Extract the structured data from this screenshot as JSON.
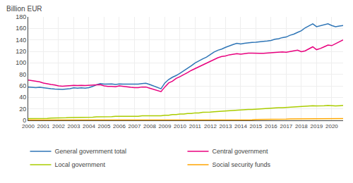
{
  "chart_data": {
    "type": "line",
    "ylabel": "Billion EUR",
    "categories": [
      "2000",
      null,
      null,
      null,
      "2001",
      null,
      null,
      null,
      "2002",
      null,
      null,
      null,
      "2003",
      null,
      null,
      null,
      "2004",
      null,
      null,
      null,
      "2005",
      null,
      null,
      null,
      "2006",
      null,
      null,
      null,
      "2007",
      null,
      null,
      null,
      "2008",
      null,
      null,
      null,
      "2009",
      null,
      null,
      null,
      "2010",
      null,
      null,
      null,
      "2011",
      null,
      null,
      null,
      "2012",
      null,
      null,
      null,
      "2013",
      null,
      null,
      null,
      "2014",
      null,
      null,
      null,
      "2015",
      null,
      null,
      null,
      "2016",
      null,
      null,
      null,
      "2017",
      null,
      null,
      null,
      "2018",
      null,
      null,
      null,
      "2019",
      null,
      null,
      null,
      "2020",
      null,
      null,
      null
    ],
    "series": [
      {
        "name": "General government total",
        "color": "#2E75B6",
        "values": [
          58.0,
          57.5,
          57.0,
          57.5,
          56.5,
          55.5,
          55.0,
          54.5,
          54.0,
          54.0,
          54.5,
          55.0,
          56.5,
          56.0,
          56.5,
          56.0,
          57.0,
          59.0,
          62.0,
          64.0,
          63.0,
          63.0,
          63.5,
          62.5,
          63.5,
          63.0,
          63.0,
          63.0,
          63.0,
          63.0,
          64.0,
          64.5,
          62.5,
          60.0,
          57.5,
          55.0,
          65.0,
          71.0,
          75.0,
          78.0,
          82.0,
          86.0,
          90.0,
          95.0,
          100.0,
          104.0,
          107.0,
          110.0,
          115.0,
          119.0,
          122.0,
          124.0,
          127.0,
          130.0,
          132.0,
          134.0,
          133.0,
          134.0,
          135.0,
          135.5,
          136.0,
          137.0,
          137.5,
          138.0,
          139.0,
          141.0,
          142.0,
          144.0,
          145.0,
          148.0,
          150.0,
          153.0,
          156.0,
          161.0,
          165.0,
          168.0,
          163.0,
          164.5,
          166.0,
          168.0,
          165.0,
          163.0,
          164.0,
          165.0
        ]
      },
      {
        "name": "Central government",
        "color": "#E8007E",
        "values": [
          70.0,
          69.0,
          68.0,
          67.0,
          65.0,
          63.5,
          62.5,
          61.5,
          60.0,
          59.5,
          60.0,
          60.5,
          61.0,
          60.5,
          61.0,
          60.5,
          61.0,
          61.0,
          61.5,
          62.0,
          60.0,
          59.0,
          59.0,
          58.5,
          60.0,
          59.0,
          58.5,
          57.5,
          57.0,
          57.0,
          58.0,
          58.0,
          56.0,
          54.0,
          52.0,
          50.0,
          58.0,
          65.0,
          68.0,
          73.0,
          76.0,
          79.0,
          83.0,
          87.0,
          90.0,
          94.0,
          97.0,
          100.0,
          103.0,
          106.0,
          109.0,
          111.0,
          112.0,
          114.0,
          115.0,
          116.0,
          115.0,
          116.0,
          117.0,
          117.0,
          116.5,
          116.5,
          116.5,
          117.0,
          117.5,
          117.5,
          118.0,
          119.0,
          118.5,
          120.0,
          121.0,
          122.0,
          119.5,
          121.0,
          124.0,
          128.0,
          123.0,
          125.0,
          128.0,
          131.0,
          130.0,
          133.0,
          136.0,
          140.0
        ]
      },
      {
        "name": "Local government",
        "color": "#AACC00",
        "values": [
          3.0,
          3.0,
          3.5,
          3.5,
          3.5,
          3.5,
          4.0,
          4.0,
          4.0,
          4.0,
          4.5,
          5.0,
          5.0,
          5.0,
          5.0,
          5.0,
          5.0,
          5.5,
          6.0,
          6.0,
          6.0,
          6.0,
          6.5,
          7.0,
          7.0,
          7.0,
          7.0,
          7.0,
          7.0,
          7.0,
          8.0,
          8.0,
          8.0,
          8.0,
          8.0,
          8.0,
          9.0,
          9.0,
          10.0,
          10.0,
          11.0,
          11.0,
          12.0,
          12.0,
          13.0,
          13.0,
          14.0,
          14.0,
          14.5,
          15.0,
          15.5,
          16.0,
          16.5,
          17.0,
          17.5,
          18.0,
          18.0,
          18.5,
          19.0,
          19.0,
          19.5,
          20.0,
          20.5,
          21.0,
          21.0,
          21.5,
          22.0,
          22.0,
          22.5,
          23.0,
          23.5,
          24.0,
          24.0,
          24.5,
          25.0,
          25.5,
          25.0,
          25.0,
          25.5,
          26.0,
          25.5,
          25.0,
          25.5,
          26.0
        ]
      },
      {
        "name": "Social security funds",
        "color": "#FFA500",
        "values": [
          0.5,
          0.5,
          0.5,
          0.5,
          0.5,
          0.5,
          0.5,
          0.5,
          0.5,
          0.5,
          0.5,
          0.5,
          0.5,
          0.5,
          0.5,
          0.5,
          0.5,
          0.5,
          0.5,
          0.5,
          0.5,
          0.5,
          0.5,
          0.5,
          0.5,
          0.5,
          0.5,
          0.5,
          0.5,
          0.5,
          0.5,
          0.5,
          0.5,
          0.5,
          0.5,
          0.5,
          0.5,
          0.5,
          0.5,
          0.5,
          0.5,
          0.5,
          0.5,
          0.5,
          0.5,
          0.5,
          0.5,
          0.5,
          1.0,
          1.0,
          1.0,
          1.0,
          1.0,
          1.0,
          1.0,
          1.0,
          1.0,
          1.0,
          1.0,
          1.0,
          1.5,
          1.5,
          2.0,
          2.0,
          2.0,
          2.0,
          2.0,
          2.0,
          2.0,
          2.5,
          2.5,
          3.0,
          3.0,
          3.0,
          3.0,
          3.0,
          3.0,
          3.0,
          3.0,
          3.0,
          3.0,
          3.0,
          3.0,
          3.0
        ]
      }
    ],
    "ylim": [
      0,
      180
    ],
    "yticks": [
      0,
      20,
      40,
      60,
      80,
      100,
      120,
      140,
      160,
      180
    ],
    "grid": true,
    "legend": "bottom"
  }
}
